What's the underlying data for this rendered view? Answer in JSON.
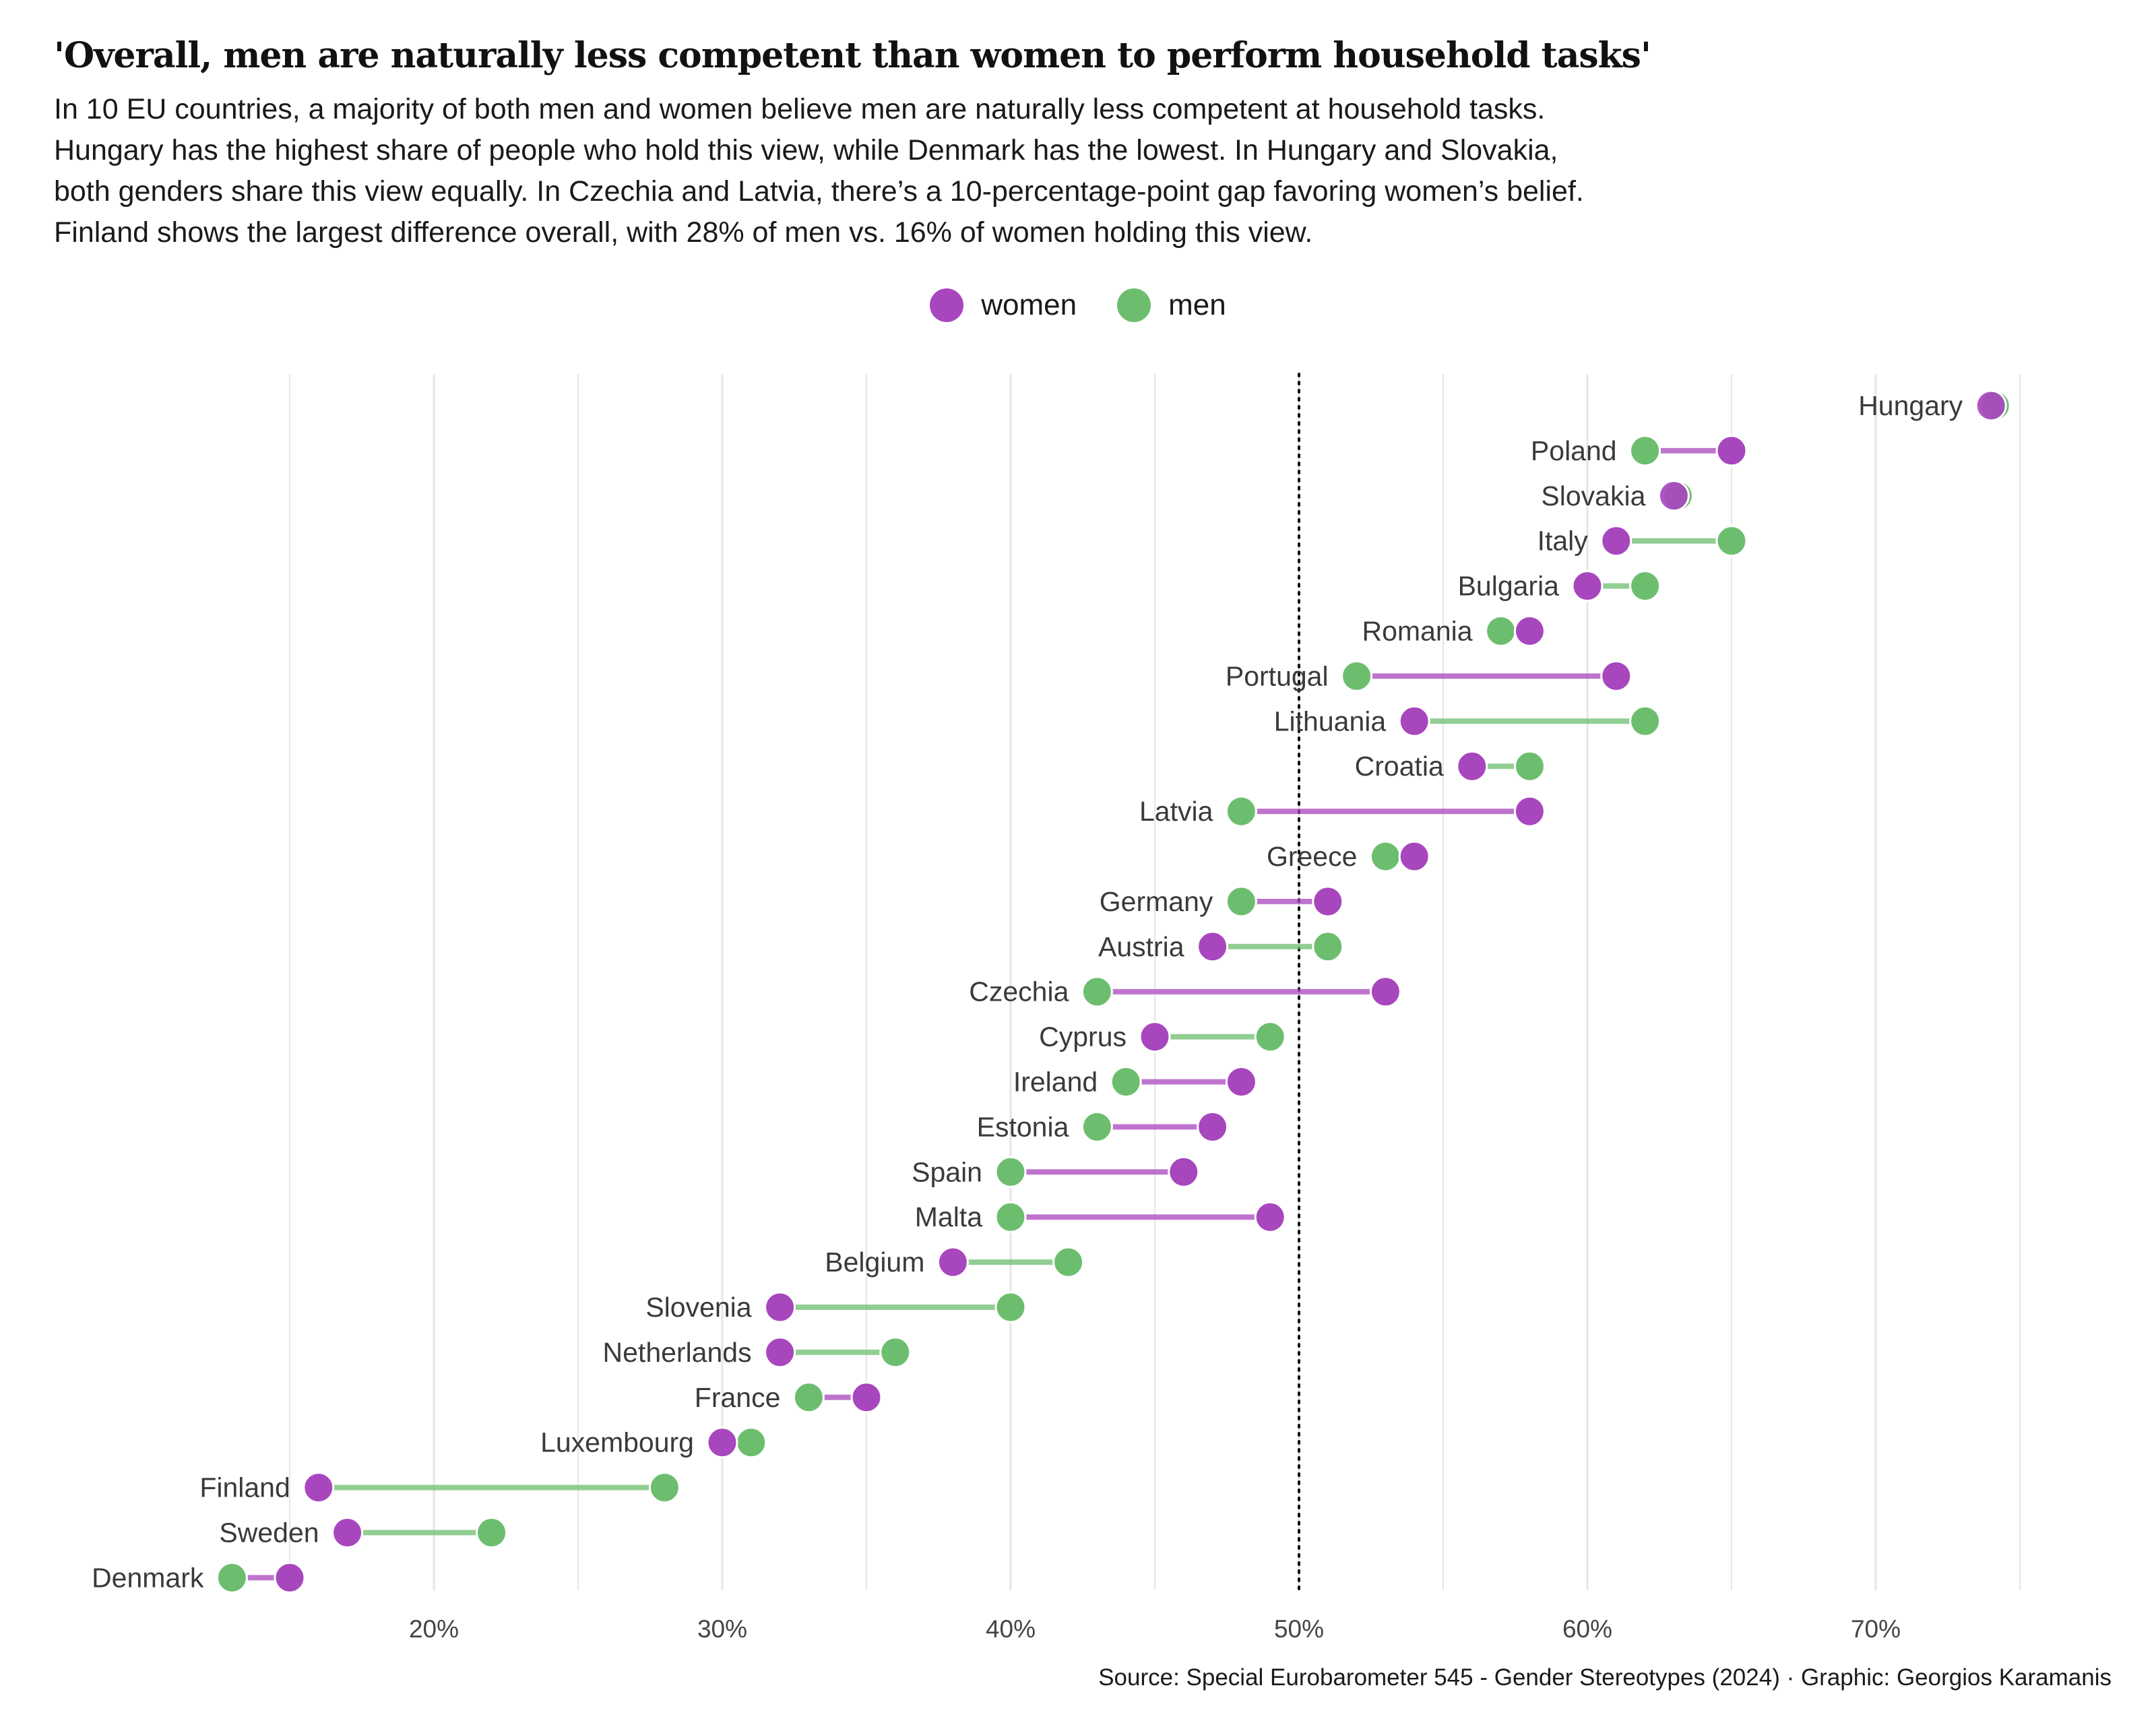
{
  "title": "'Overall, men are naturally less competent than women to perform household tasks'",
  "subtitle_lines": [
    "In 10 EU countries, a majority of both men and women believe men are naturally less competent at household tasks.",
    "Hungary has the highest share of people who hold this view, while Denmark has the lowest. In Hungary and Slovakia,",
    "both genders share this view equally. In Czechia and Latvia, there’s a 10-percentage-point gap favoring women’s belief.",
    "Finland shows the largest difference overall, with 28% of men vs. 16% of women holding this view."
  ],
  "legend": [
    {
      "label": "women",
      "color": "#A846BE"
    },
    {
      "label": "men",
      "color": "#6CBE6E"
    }
  ],
  "source": "Source: Special Eurobarometer 545 - Gender Stereotypes (2024) · Graphic: Georgios Karamanis",
  "chart_data": {
    "type": "dumbbell",
    "x_unit": "%",
    "xlim": [
      10,
      75
    ],
    "x_ticks": [
      20,
      30,
      40,
      50,
      60,
      70
    ],
    "x_tick_labels": [
      "20%",
      "30%",
      "40%",
      "50%",
      "60%",
      "70%"
    ],
    "reference_line": 50,
    "grid": true,
    "legend_position": "top-center",
    "series": [
      {
        "name": "women",
        "color": "#A846BE"
      },
      {
        "name": "men",
        "color": "#6CBE6E"
      }
    ],
    "countries": [
      {
        "country": "Hungary",
        "women": 74,
        "men": 74
      },
      {
        "country": "Poland",
        "women": 65,
        "men": 62
      },
      {
        "country": "Slovakia",
        "women": 63,
        "men": 63
      },
      {
        "country": "Italy",
        "women": 61,
        "men": 65
      },
      {
        "country": "Bulgaria",
        "women": 60,
        "men": 62
      },
      {
        "country": "Romania",
        "women": 58,
        "men": 57
      },
      {
        "country": "Portugal",
        "women": 61,
        "men": 52
      },
      {
        "country": "Lithuania",
        "women": 54,
        "men": 62
      },
      {
        "country": "Croatia",
        "women": 56,
        "men": 58
      },
      {
        "country": "Latvia",
        "women": 58,
        "men": 48
      },
      {
        "country": "Greece",
        "women": 54,
        "men": 53
      },
      {
        "country": "Germany",
        "women": 51,
        "men": 48
      },
      {
        "country": "Austria",
        "women": 47,
        "men": 51
      },
      {
        "country": "Czechia",
        "women": 53,
        "men": 43
      },
      {
        "country": "Cyprus",
        "women": 45,
        "men": 49
      },
      {
        "country": "Ireland",
        "women": 48,
        "men": 44
      },
      {
        "country": "Estonia",
        "women": 47,
        "men": 43
      },
      {
        "country": "Spain",
        "women": 46,
        "men": 40
      },
      {
        "country": "Malta",
        "women": 49,
        "men": 40
      },
      {
        "country": "Belgium",
        "women": 38,
        "men": 42
      },
      {
        "country": "Slovenia",
        "women": 32,
        "men": 40
      },
      {
        "country": "Netherlands",
        "women": 32,
        "men": 36
      },
      {
        "country": "France",
        "women": 35,
        "men": 33
      },
      {
        "country": "Luxembourg",
        "women": 30,
        "men": 31
      },
      {
        "country": "Finland",
        "women": 16,
        "men": 28
      },
      {
        "country": "Sweden",
        "women": 17,
        "men": 22
      },
      {
        "country": "Denmark",
        "women": 15,
        "men": 13
      }
    ]
  }
}
